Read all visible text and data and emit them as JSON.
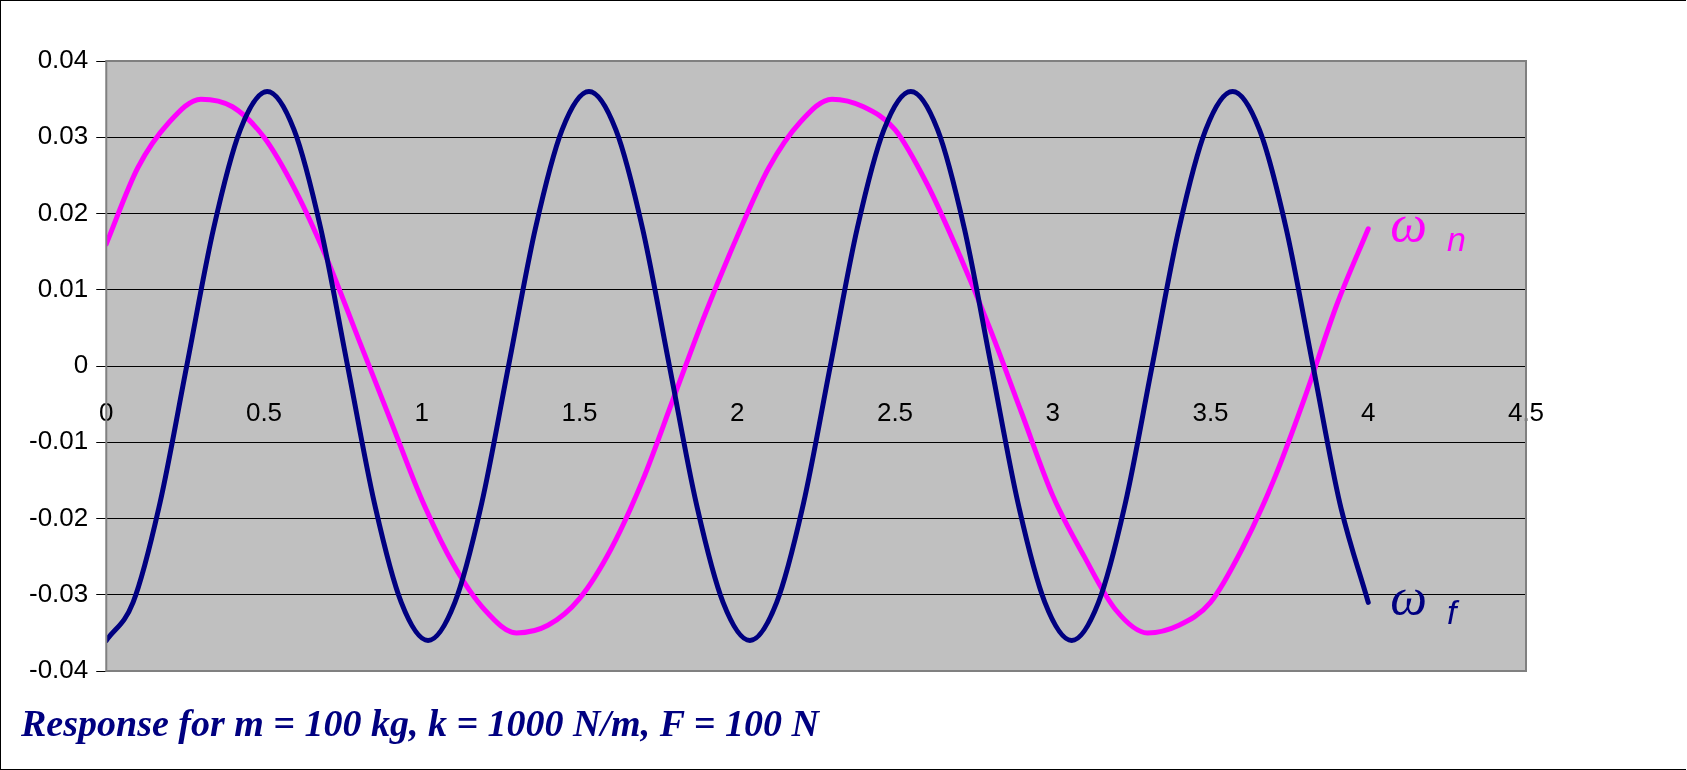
{
  "chart_data": {
    "type": "line",
    "xlim": [
      0,
      4.5
    ],
    "xticks": [
      0,
      0.5,
      1,
      1.5,
      2,
      2.5,
      3,
      3.5,
      4,
      4.5
    ],
    "ylim": [
      -0.04,
      0.04
    ],
    "yticks": [
      -0.04,
      -0.03,
      -0.02,
      -0.01,
      0,
      0.01,
      0.02,
      0.03,
      0.04
    ],
    "grid": "y",
    "legend": false,
    "marker": "none",
    "line_style": "solid",
    "annotations": [
      "Response for m = 100 kg, k = 1000 N/m, F = 100 N"
    ],
    "series": [
      {
        "name": "ω$_{f}$",
        "color": "#000080",
        "x": [
          0,
          0.085,
          0.17,
          0.255,
          0.34,
          0.425,
          0.51,
          0.595,
          0.68,
          0.765,
          0.85,
          0.935,
          1.02,
          1.105,
          1.19,
          1.275,
          1.36,
          1.445,
          1.53,
          1.615,
          1.7,
          1.785,
          1.87,
          1.955,
          2.04,
          2.125,
          2.21,
          2.295,
          2.38,
          2.465,
          2.55,
          2.635,
          2.72,
          2.805,
          2.89,
          2.975,
          3.06,
          3.145,
          3.23,
          3.315,
          3.4,
          3.485,
          3.57,
          3.655,
          3.74,
          3.825,
          3.91,
          4.0
        ],
        "values": [
          -0.036,
          -0.031,
          -0.018,
          0,
          0.018,
          0.031,
          0.036,
          0.031,
          0.018,
          0,
          -0.018,
          -0.031,
          -0.036,
          -0.031,
          -0.018,
          0,
          0.018,
          0.031,
          0.036,
          0.031,
          0.018,
          0,
          -0.018,
          -0.031,
          -0.036,
          -0.031,
          -0.018,
          0,
          0.018,
          0.031,
          0.036,
          0.031,
          0.018,
          0,
          -0.018,
          -0.031,
          -0.036,
          -0.031,
          -0.018,
          0,
          0.018,
          0.031,
          0.036,
          0.031,
          0.018,
          0,
          -0.018,
          -0.031
        ]
      },
      {
        "name": "ω$_{n}$",
        "color": "#ff00ff",
        "x": [
          0,
          0.1,
          0.2,
          0.3,
          0.4,
          0.5,
          0.6,
          0.7,
          0.8,
          0.9,
          1,
          1.1,
          1.2,
          1.3,
          1.4,
          1.5,
          1.6,
          1.7,
          1.8,
          1.9,
          2,
          2.1,
          2.2,
          2.3,
          2.4,
          2.5,
          2.6,
          2.7,
          2.8,
          2.9,
          3,
          3.1,
          3.2,
          3.3,
          3.4,
          3.5,
          3.6,
          3.7,
          3.8,
          3.9,
          4
        ],
        "values": [
          0.016,
          0.026,
          0.032,
          0.035,
          0.034,
          0.03,
          0.023,
          0.014,
          0.0035,
          -0.007,
          -0.0175,
          -0.026,
          -0.032,
          -0.035,
          -0.034,
          -0.0305,
          -0.024,
          -0.015,
          -0.004,
          0.007,
          0.017,
          0.026,
          0.032,
          0.035,
          0.034,
          0.031,
          0.024,
          0.015,
          0.005,
          -0.006,
          -0.017,
          -0.025,
          -0.032,
          -0.035,
          -0.034,
          -0.031,
          -0.024,
          -0.015,
          -0.004,
          0.008,
          0.018
        ]
      }
    ]
  }
}
